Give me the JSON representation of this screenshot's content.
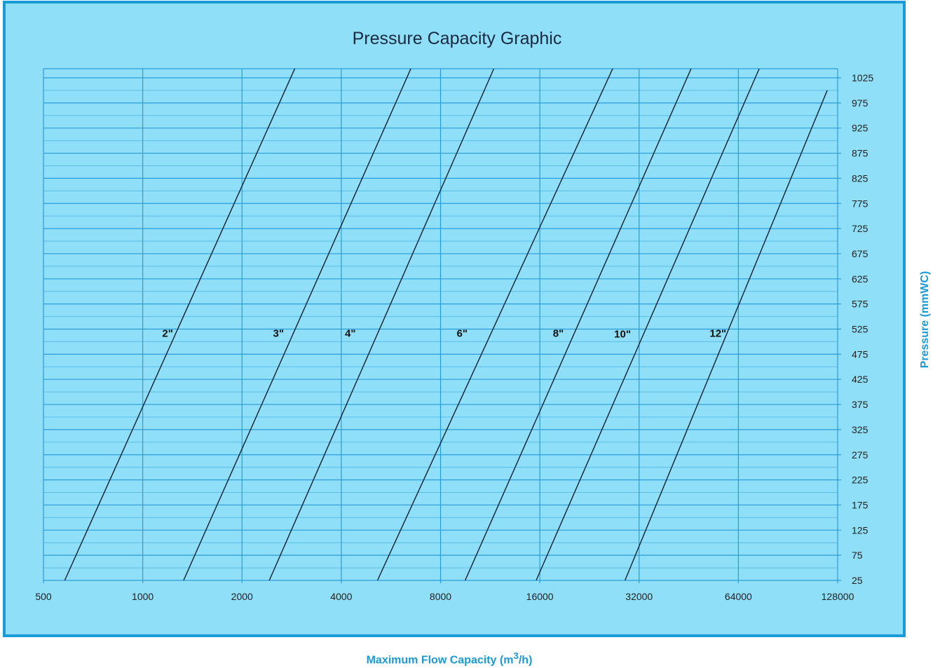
{
  "chart_data": {
    "type": "line",
    "title": "Pressure Capacity Graphic",
    "xlabel": "Maximum Flow Capacity (m",
    "xlabel_sup": "3",
    "xlabel_end": "/h)",
    "ylabel": "Pressure (mmWC)",
    "x_scale": "log2",
    "xlim": [
      500,
      128000
    ],
    "ylim": [
      25,
      1025
    ],
    "x_ticks": [
      "500",
      "1000",
      "2000",
      "4000",
      "8000",
      "16000",
      "32000",
      "64000",
      "128000"
    ],
    "x_tick_values": [
      500,
      1000,
      2000,
      4000,
      8000,
      16000,
      32000,
      64000,
      128000
    ],
    "y_ticks": [
      "25",
      "75",
      "125",
      "175",
      "225",
      "275",
      "325",
      "375",
      "425",
      "475",
      "525",
      "575",
      "625",
      "675",
      "725",
      "775",
      "825",
      "875",
      "925",
      "975",
      "1025"
    ],
    "y_tick_values": [
      25,
      75,
      125,
      175,
      225,
      275,
      325,
      375,
      425,
      475,
      525,
      575,
      625,
      675,
      725,
      775,
      825,
      875,
      925,
      975,
      1025
    ],
    "y_minor_step": 25,
    "grid": true,
    "series": [
      {
        "name": "2\"",
        "label_at": [
          1190,
          510
        ],
        "points": [
          [
            580,
            25
          ],
          [
            2890,
            1043
          ]
        ]
      },
      {
        "name": "3\"",
        "label_at": [
          2580,
          510
        ],
        "points": [
          [
            1330,
            25
          ],
          [
            6500,
            1043
          ]
        ]
      },
      {
        "name": "4\"",
        "label_at": [
          4260,
          510
        ],
        "points": [
          [
            2420,
            25
          ],
          [
            11600,
            1043
          ]
        ]
      },
      {
        "name": "6\"",
        "label_at": [
          9300,
          510
        ],
        "points": [
          [
            5150,
            25
          ],
          [
            26600,
            1043
          ]
        ]
      },
      {
        "name": "8\"",
        "label_at": [
          18200,
          510
        ],
        "points": [
          [
            9500,
            25
          ],
          [
            46000,
            1043
          ]
        ]
      },
      {
        "name": "10\"",
        "label_at": [
          28500,
          508
        ],
        "points": [
          [
            15600,
            25
          ],
          [
            74000,
            1043
          ]
        ]
      },
      {
        "name": "12\"",
        "label_at": [
          55500,
          510
        ],
        "points": [
          [
            29000,
            25
          ],
          [
            119000,
            1000
          ]
        ]
      }
    ]
  },
  "colors": {
    "background": "#8fdff8",
    "frame": "#1a9ad6",
    "major_grid": "#2a9dd8",
    "minor_grid": "#5bbde6",
    "line": "#0d1f2e",
    "axis_title": "#1a9ad6",
    "title": "#1b2a40"
  }
}
